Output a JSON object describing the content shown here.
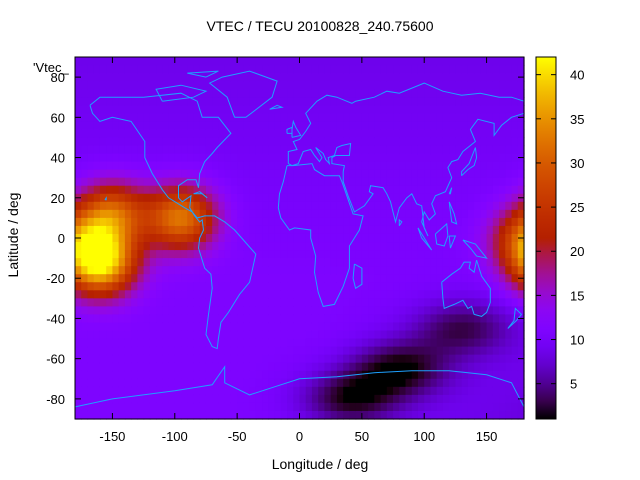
{
  "chart_data": {
    "type": "heatmap",
    "title": "VTEC / TECU 20100828_240.75600",
    "xlabel": "Longitude / deg",
    "ylabel": "Latitude / deg",
    "key_label": "'Vtec_",
    "x_ticks": [
      -150,
      -100,
      -50,
      0,
      50,
      100,
      150
    ],
    "y_ticks": [
      -80,
      -60,
      -40,
      -20,
      0,
      20,
      40,
      60,
      80
    ],
    "xlim": [
      -180,
      180
    ],
    "ylim": [
      -90,
      90
    ],
    "colorbar": {
      "ticks": [
        5,
        10,
        15,
        20,
        25,
        30,
        35,
        40
      ],
      "range": [
        1,
        42
      ]
    },
    "coastline_color": "#1ea0ff",
    "field_features": {
      "background_tecu": 11,
      "peaks": [
        {
          "lon": -160,
          "lat": -12,
          "tecu": 41
        },
        {
          "lon": -95,
          "lat": 10,
          "tecu": 33
        },
        {
          "lon": -150,
          "lat": 12,
          "tecu": 30
        },
        {
          "lon": 180,
          "lat": 0,
          "tecu": 24
        }
      ],
      "lows": [
        {
          "lon": 80,
          "lat": -65,
          "tecu": 2
        },
        {
          "lon": 40,
          "lat": -80,
          "tecu": 2
        },
        {
          "lon": 130,
          "lat": -45,
          "tecu": 4
        }
      ]
    }
  }
}
